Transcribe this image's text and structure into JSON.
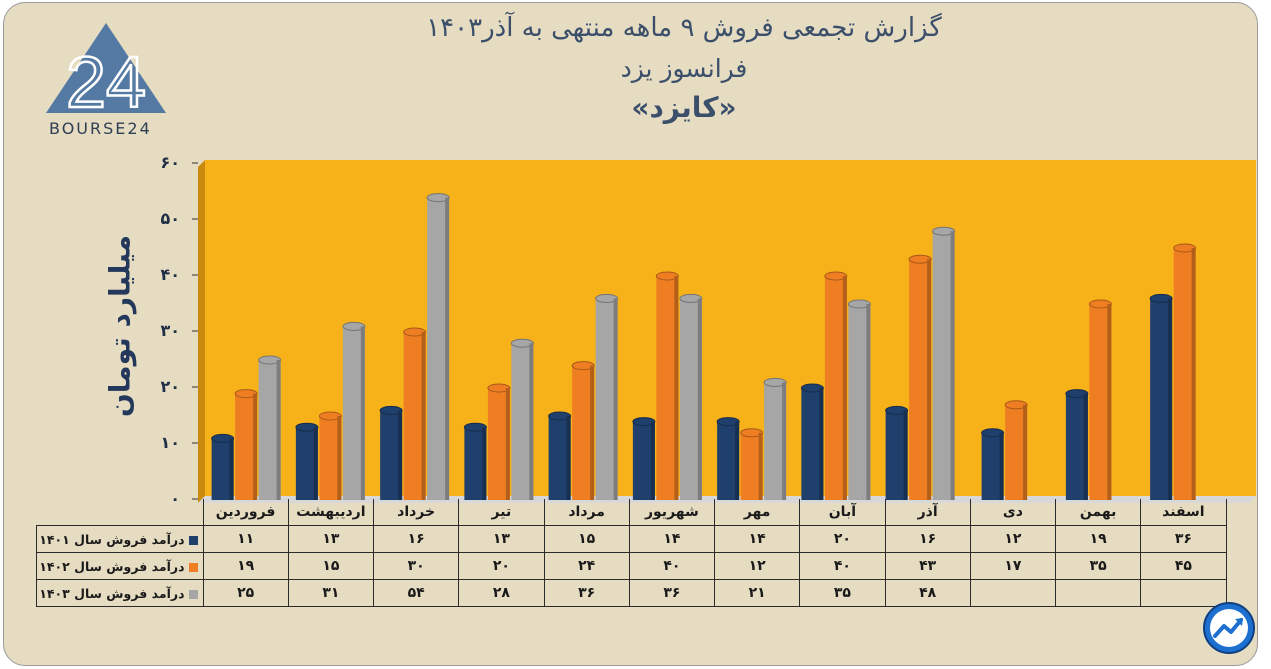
{
  "title": {
    "line1": "گزارش تجمعی فروش ۹ ماهه منتهی به آذر۱۴۰۳",
    "line2": "فرانسوز یزد",
    "line3": "«کایزد»"
  },
  "logo": {
    "text": "BOURSE24",
    "mark": "24",
    "icon": "triangle-24-logo"
  },
  "badge": {
    "icon": "trend-arrow-icon"
  },
  "colors": {
    "plot_background": "#f7b21a",
    "series_1401": "#1f3f6c",
    "series_1402": "#ef7e23",
    "series_1403": "#a6a6a6",
    "text": "#3b4f6b"
  },
  "chart_data": {
    "type": "bar",
    "title": "گزارش تجمعی فروش ۹ ماهه منتهی به آذر۱۴۰۳",
    "ylabel": "میلیارد تومان",
    "xlabel": "",
    "ylim": [
      0,
      60
    ],
    "yticks": [
      0,
      10,
      20,
      30,
      40,
      50,
      60
    ],
    "ytick_labels": [
      "۰",
      "۱۰",
      "۲۰",
      "۳۰",
      "۴۰",
      "۵۰",
      "۶۰"
    ],
    "grid": false,
    "categories": [
      "فروردین",
      "اردیبهشت",
      "خرداد",
      "تیر",
      "مرداد",
      "شهریور",
      "مهر",
      "آبان",
      "آذر",
      "دی",
      "بهمن",
      "اسفند"
    ],
    "series": [
      {
        "name": "درآمد فروش سال ۱۴۰۱",
        "values": [
          11,
          13,
          16,
          13,
          15,
          14,
          14,
          20,
          16,
          12,
          19,
          36
        ],
        "labels": [
          "۱۱",
          "۱۳",
          "۱۶",
          "۱۳",
          "۱۵",
          "۱۴",
          "۱۴",
          "۲۰",
          "۱۶",
          "۱۲",
          "۱۹",
          "۳۶"
        ]
      },
      {
        "name": "درآمد فروش سال ۱۴۰۲",
        "values": [
          19,
          15,
          30,
          20,
          24,
          40,
          12,
          40,
          43,
          17,
          35,
          45
        ],
        "labels": [
          "۱۹",
          "۱۵",
          "۳۰",
          "۲۰",
          "۲۴",
          "۴۰",
          "۱۲",
          "۴۰",
          "۴۳",
          "۱۷",
          "۳۵",
          "۴۵"
        ]
      },
      {
        "name": "درآمد فروش سال ۱۴۰۳",
        "values": [
          25,
          31,
          54,
          28,
          36,
          36,
          21,
          35,
          48,
          null,
          null,
          null
        ],
        "labels": [
          "۲۵",
          "۳۱",
          "۵۴",
          "۲۸",
          "۳۶",
          "۳۶",
          "۲۱",
          "۳۵",
          "۴۸",
          "",
          "",
          ""
        ]
      }
    ]
  }
}
